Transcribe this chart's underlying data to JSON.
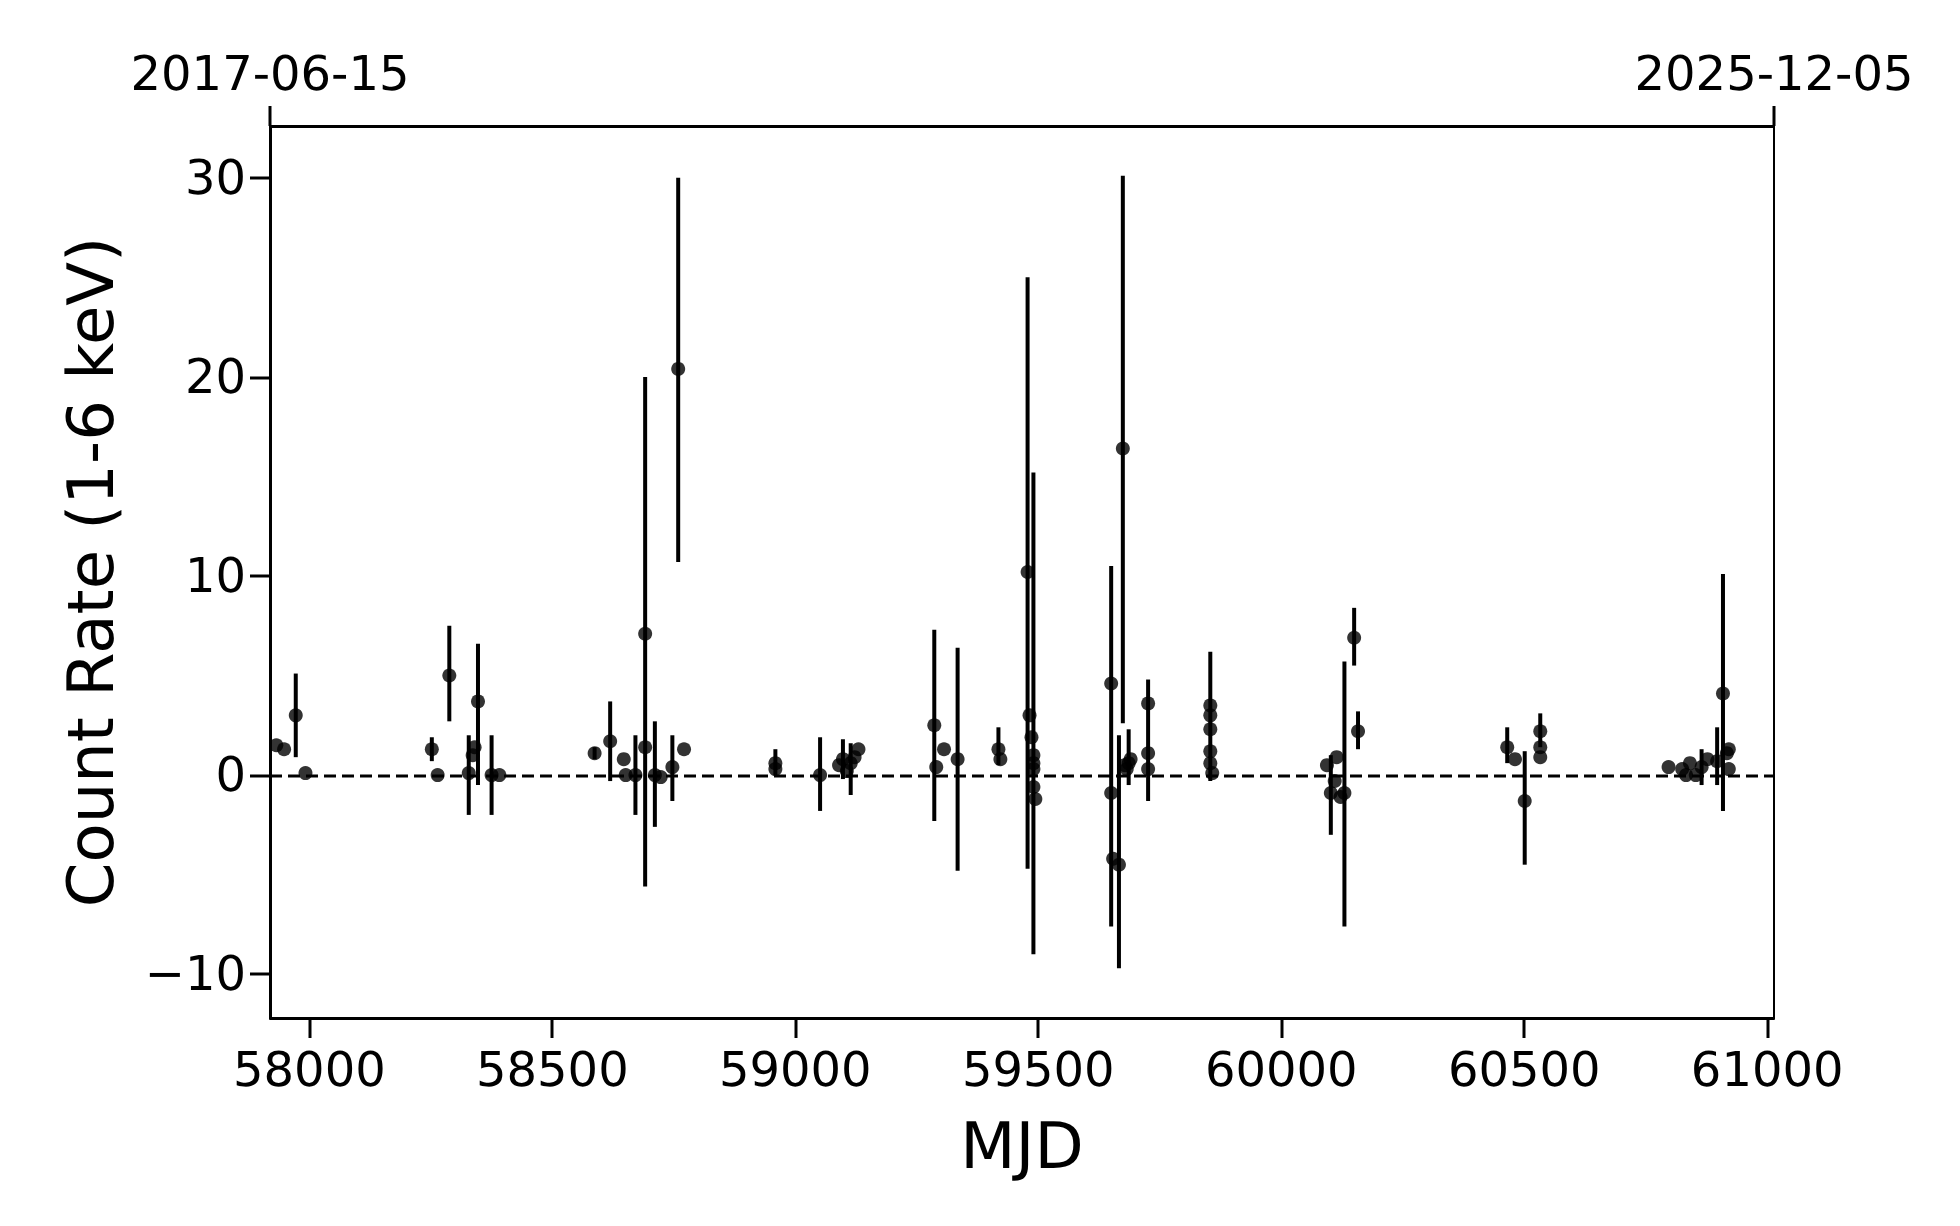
{
  "chart_data": {
    "type": "scatter",
    "xlabel": "MJD",
    "ylabel": "Count Rate (1-6 keV)",
    "x": [
      57932,
      57948,
      57972,
      57992,
      58252,
      58264,
      58288,
      58328,
      58336,
      58340,
      58347,
      58375,
      58391,
      58587,
      58619,
      58647,
      58651,
      58671,
      58691,
      58691,
      58711,
      58723,
      58747,
      58759,
      58771,
      58959,
      58959,
      59051,
      59090,
      59098,
      59106,
      59114,
      59122,
      59130,
      59286,
      59290,
      59306,
      59334,
      59418,
      59422,
      59478,
      59482,
      59486,
      59490,
      59490,
      59490,
      59490,
      59494,
      59650,
      59650,
      59654,
      59666,
      59674,
      59678,
      59682,
      59686,
      59690,
      59726,
      59726,
      59726,
      59854,
      59854,
      59854,
      59854,
      59854,
      59858,
      60094,
      60102,
      60110,
      60114,
      60122,
      60130,
      60150,
      60158,
      60465,
      60481,
      60501,
      60533,
      60533,
      60533,
      60797,
      60825,
      60833,
      60841,
      60853,
      60865,
      60877,
      60897,
      60909,
      60917,
      60921,
      60921
    ],
    "series": [
      {
        "color": "#000000",
        "values": [
          1.5,
          1.3,
          3.0,
          0.1,
          1.3,
          0.0,
          5.0,
          0.1,
          1.0,
          1.4,
          3.7,
          0.0,
          0.0,
          1.1,
          1.7,
          0.8,
          0.0,
          0.0,
          7.1,
          1.4,
          0.0,
          -0.1,
          0.4,
          20.4,
          1.3,
          0.6,
          0.3,
          0.0,
          0.5,
          0.8,
          0.2,
          0.6,
          0.9,
          1.3,
          2.5,
          0.4,
          1.3,
          0.8,
          1.3,
          0.8,
          10.2,
          3.0,
          1.9,
          1.0,
          0.6,
          0.3,
          -0.6,
          -1.2,
          4.6,
          -0.9,
          -4.2,
          -4.5,
          16.4,
          0.5,
          0.3,
          0.6,
          0.8,
          3.6,
          1.1,
          0.3,
          3.5,
          3.0,
          2.3,
          1.2,
          0.6,
          0.1,
          0.5,
          -0.9,
          -0.3,
          0.9,
          -1.1,
          -0.9,
          6.9,
          2.2,
          1.4,
          0.8,
          -1.3,
          2.2,
          1.4,
          0.9,
          0.4,
          0.3,
          0.0,
          0.6,
          0.0,
          0.4,
          0.8,
          0.7,
          4.1,
          1.1,
          1.3,
          0.3
        ],
        "errors": [
          null,
          null,
          [
            0.9,
            5.1
          ],
          null,
          [
            0.7,
            1.9
          ],
          null,
          [
            2.7,
            7.5
          ],
          [
            -2.0,
            2.0
          ],
          null,
          null,
          [
            -0.5,
            6.6
          ],
          [
            -2.0,
            2.0
          ],
          null,
          [
            0.8,
            1.4
          ],
          [
            -0.3,
            3.7
          ],
          null,
          null,
          [
            -2.0,
            2.0
          ],
          [
            -5.6,
            20.0
          ],
          null,
          [
            -2.6,
            2.7
          ],
          null,
          [
            -1.3,
            2.0
          ],
          [
            10.7,
            30.0
          ],
          null,
          [
            0.0,
            1.3
          ],
          null,
          [
            -1.8,
            1.9
          ],
          null,
          [
            -0.2,
            1.8
          ],
          null,
          [
            -1.0,
            1.6
          ],
          null,
          null,
          [
            -2.3,
            7.3
          ],
          null,
          null,
          [
            -4.8,
            6.4
          ],
          [
            0.5,
            2.4
          ],
          null,
          [
            -4.7,
            25.0
          ],
          null,
          null,
          null,
          null,
          null,
          [
            -9.0,
            15.2
          ],
          null,
          [
            -7.6,
            10.5
          ],
          null,
          null,
          [
            -9.7,
            2.0
          ],
          [
            2.6,
            30.1
          ],
          null,
          null,
          [
            -0.5,
            2.3
          ],
          null,
          [
            -1.3,
            4.8
          ],
          null,
          null,
          [
            -0.3,
            6.2
          ],
          null,
          null,
          null,
          null,
          null,
          null,
          [
            -3.0,
            1.0
          ],
          null,
          null,
          null,
          [
            -7.6,
            5.7
          ],
          [
            5.5,
            8.4
          ],
          [
            1.3,
            3.2
          ],
          [
            0.6,
            2.4
          ],
          null,
          [
            -4.5,
            1.2
          ],
          [
            1.4,
            3.1
          ],
          null,
          null,
          null,
          null,
          null,
          null,
          null,
          [
            -0.5,
            1.3
          ],
          null,
          [
            -0.5,
            2.4
          ],
          [
            -1.8,
            10.1
          ],
          null,
          null,
          null
        ]
      }
    ],
    "xlim": [
      57919,
      61014
    ],
    "xticks": [
      58000,
      58500,
      59000,
      59500,
      60000,
      60500,
      61000
    ],
    "x2lim": [
      "2017-06-15",
      "2025-12-05"
    ],
    "x2ticks": [
      "2017-06-15",
      "2025-12-05"
    ],
    "ylim": [
      -12.2,
      32.6
    ],
    "yticks": [
      {
        "value": -10,
        "label": "−10"
      },
      0,
      10,
      20,
      30
    ],
    "ref_lines": [
      {
        "axis": "y",
        "value": 0,
        "color": "#000000",
        "line_style": "dashed"
      }
    ],
    "grid": false,
    "marker": "circle"
  }
}
